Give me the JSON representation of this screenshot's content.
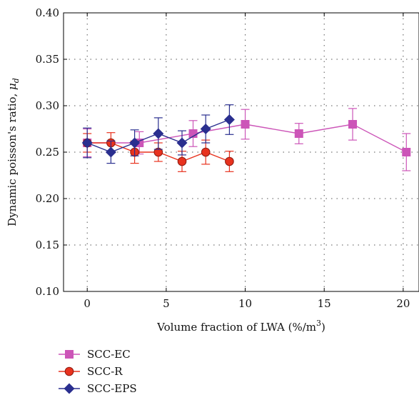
{
  "chart_data": {
    "type": "line",
    "xlabel": "Volume fraction of LWA (%/m",
    "xlabel_sup": "3",
    "xlabel_end": ")",
    "ylabel": "Dynamic poisson's ratio, ",
    "ylabel_symbol": "μ",
    "ylabel_sub": "d",
    "xlim": [
      -1.5,
      21
    ],
    "ylim": [
      0.1,
      0.4
    ],
    "xticks": [
      0,
      5,
      10,
      15,
      20
    ],
    "xtick_labels": [
      "0",
      "5",
      "10",
      "15",
      "20"
    ],
    "yticks": [
      0.1,
      0.15,
      0.2,
      0.25,
      0.3,
      0.35,
      0.4
    ],
    "ytick_labels": [
      "0.10",
      "0.15",
      "0.20",
      "0.25",
      "0.30",
      "0.35",
      "0.40"
    ],
    "grid": true,
    "legend_position": "bottom-left, below plot",
    "series": [
      {
        "name": "SCC-EC",
        "color": "#cc55b8",
        "marker": "square",
        "points": [
          {
            "x": 0,
            "y": 0.26,
            "err": 0.015
          },
          {
            "x": 3.3,
            "y": 0.26,
            "err": 0.012
          },
          {
            "x": 6.7,
            "y": 0.27,
            "err": 0.014
          },
          {
            "x": 10,
            "y": 0.28,
            "err": 0.016
          },
          {
            "x": 13.4,
            "y": 0.27,
            "err": 0.011
          },
          {
            "x": 16.8,
            "y": 0.28,
            "err": 0.017
          },
          {
            "x": 20.2,
            "y": 0.25,
            "err": 0.02
          }
        ]
      },
      {
        "name": "SCC-R",
        "color": "#e8321e",
        "marker": "circle",
        "points": [
          {
            "x": 0,
            "y": 0.26,
            "err": 0.01
          },
          {
            "x": 1.5,
            "y": 0.26,
            "err": 0.011
          },
          {
            "x": 3,
            "y": 0.25,
            "err": 0.012
          },
          {
            "x": 4.5,
            "y": 0.25,
            "err": 0.01
          },
          {
            "x": 6,
            "y": 0.24,
            "err": 0.011
          },
          {
            "x": 7.5,
            "y": 0.25,
            "err": 0.013
          },
          {
            "x": 9,
            "y": 0.24,
            "err": 0.011
          }
        ]
      },
      {
        "name": "SCC-EPS",
        "color": "#2a2f8f",
        "marker": "diamond",
        "points": [
          {
            "x": 0,
            "y": 0.26,
            "err": 0.016
          },
          {
            "x": 1.5,
            "y": 0.25,
            "err": 0.012
          },
          {
            "x": 3,
            "y": 0.26,
            "err": 0.014
          },
          {
            "x": 4.5,
            "y": 0.27,
            "err": 0.017
          },
          {
            "x": 6,
            "y": 0.26,
            "err": 0.013
          },
          {
            "x": 7.5,
            "y": 0.275,
            "err": 0.015
          },
          {
            "x": 9,
            "y": 0.285,
            "err": 0.016
          }
        ]
      }
    ]
  }
}
